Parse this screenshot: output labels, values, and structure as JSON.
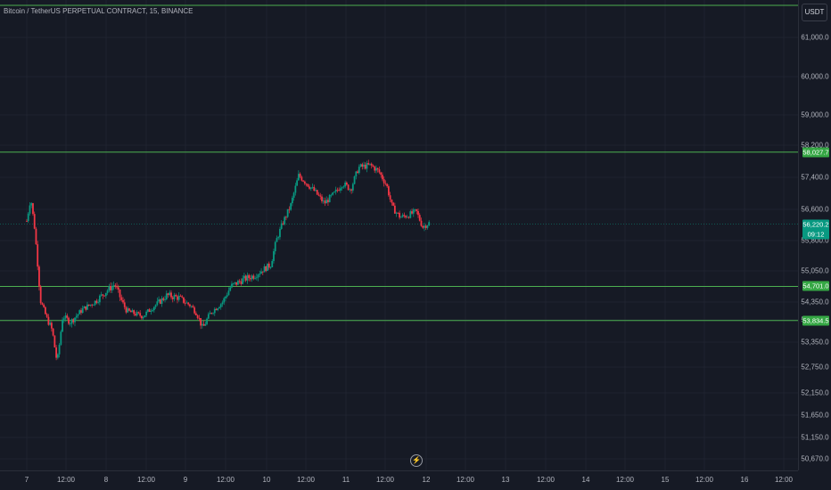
{
  "title": "Bitcoin / TetherUS PERPETUAL CONTRACT, 15, BINANCE",
  "currency": "USDT",
  "icons": {
    "replay": "lightning-icon"
  },
  "colors": {
    "bg": "#161a25",
    "grid": "#1f2330",
    "up": "#089981",
    "down": "#f23645",
    "level_line": "#4caf50",
    "label_green": "#35a744",
    "last_bg": "#089981",
    "axis_text": "#b2b5be"
  },
  "chart_data": {
    "type": "candlestick",
    "title": "Bitcoin / TetherUS PERPETUAL CONTRACT, 15, BINANCE",
    "xlabel": "",
    "ylabel": "",
    "y_ticks": [
      "61,000.0",
      "60,000.0",
      "59,000.0",
      "58,200.0",
      "57,400.0",
      "56,600.0",
      "55,800.0",
      "55,050.0",
      "54,350.0",
      "53,850.0",
      "53,350.0",
      "52,750.0",
      "52,150.0",
      "51,650.0",
      "51,150.0",
      "50,670.0"
    ],
    "x_ticks": [
      "7",
      "12:00",
      "8",
      "12:00",
      "9",
      "12:00",
      "10",
      "12:00",
      "11",
      "12:00",
      "12",
      "12:00",
      "13",
      "12:00",
      "14",
      "12:00",
      "15",
      "12:00",
      "16",
      "12:00"
    ],
    "levels": [
      {
        "label": "58,027.7",
        "value": 58027.7
      },
      {
        "label": "54,701.0",
        "value": 54701.0
      },
      {
        "label": "53,834.5",
        "value": 53834.5
      }
    ],
    "last_price": {
      "label": "56,220.2",
      "value": 56220.2,
      "countdown": "09:12"
    },
    "price_path": [
      [
        0,
        56300
      ],
      [
        0.05,
        56900
      ],
      [
        0.1,
        56100
      ],
      [
        0.17,
        54400
      ],
      [
        0.25,
        53900
      ],
      [
        0.32,
        53600
      ],
      [
        0.38,
        52850
      ],
      [
        0.45,
        53950
      ],
      [
        0.55,
        53800
      ],
      [
        0.7,
        54150
      ],
      [
        0.85,
        54350
      ],
      [
        1.0,
        54600
      ],
      [
        1.1,
        54750
      ],
      [
        1.25,
        54100
      ],
      [
        1.45,
        53950
      ],
      [
        1.6,
        54250
      ],
      [
        1.75,
        54500
      ],
      [
        1.9,
        54450
      ],
      [
        2.05,
        54250
      ],
      [
        2.12,
        54050
      ],
      [
        2.2,
        53650
      ],
      [
        2.3,
        54050
      ],
      [
        2.45,
        54350
      ],
      [
        2.55,
        54700
      ],
      [
        2.7,
        54850
      ],
      [
        2.85,
        54950
      ],
      [
        3.05,
        55200
      ],
      [
        3.12,
        55800
      ],
      [
        3.2,
        56250
      ],
      [
        3.3,
        56700
      ],
      [
        3.4,
        57450
      ],
      [
        3.5,
        57250
      ],
      [
        3.6,
        57050
      ],
      [
        3.72,
        56750
      ],
      [
        3.85,
        57000
      ],
      [
        3.95,
        57250
      ],
      [
        4.05,
        57100
      ],
      [
        4.15,
        57650
      ],
      [
        4.3,
        57700
      ],
      [
        4.4,
        57550
      ],
      [
        4.5,
        57200
      ],
      [
        4.57,
        56650
      ],
      [
        4.67,
        56400
      ],
      [
        4.77,
        56450
      ],
      [
        4.87,
        56550
      ],
      [
        4.95,
        56150
      ],
      [
        5.03,
        56250
      ]
    ]
  }
}
